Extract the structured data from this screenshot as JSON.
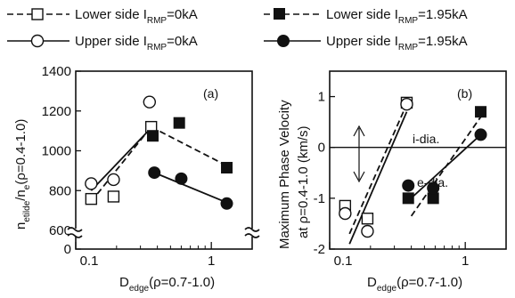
{
  "legend": {
    "items": [
      {
        "main": "Lower side I",
        "sub": "RMP",
        "tail": "=0kA",
        "marker": "open-square",
        "line": "dashed"
      },
      {
        "main": "Lower side I",
        "sub": "RMP",
        "tail": "=1.95kA",
        "marker": "filled-square",
        "line": "dashed"
      },
      {
        "main": "Upper side I",
        "sub": "RMP",
        "tail": "=0kA",
        "marker": "open-circle",
        "line": "solid"
      },
      {
        "main": "Upper side I",
        "sub": "RMP",
        "tail": "=1.95kA",
        "marker": "filled-circle",
        "line": "solid"
      }
    ]
  },
  "chart_data": [
    {
      "type": "scatter",
      "tag": "(a)",
      "xlabel": {
        "main": "D",
        "sub": "edge",
        "tail": "(ρ=0.7-1.0)"
      },
      "ylabel": {
        "main": "n",
        "sub1": "etilde",
        "mid": "/n",
        "sub2": "e",
        "tail": "(ρ=0.4-1.0)"
      },
      "xscale": "log",
      "xlim": [
        0.1,
        2.0
      ],
      "ylim": [
        0,
        1400
      ],
      "axis_break": [
        0,
        600
      ],
      "xticks": [
        0.1,
        1
      ],
      "xtick_labels": [
        "0.1",
        "1"
      ],
      "yticks": [
        0,
        600,
        800,
        1000,
        1200,
        1400
      ],
      "ytick_labels": [
        "0",
        "600",
        "800",
        "1000",
        "1200",
        "1400"
      ],
      "series": [
        {
          "name": "Lower side I_RMP=0kA",
          "marker": "open-square",
          "x": [
            0.13,
            0.19,
            0.36
          ],
          "y": [
            758,
            770,
            1120
          ],
          "fit": {
            "style": "dashed",
            "x": [
              0.13,
              0.36
            ],
            "y": [
              745,
              1120
            ]
          }
        },
        {
          "name": "Lower side I_RMP=1.95kA",
          "marker": "filled-square",
          "x": [
            0.37,
            0.58,
            1.3
          ],
          "y": [
            1075,
            1140,
            915
          ],
          "fit": {
            "style": "dashed",
            "x": [
              0.36,
              1.3
            ],
            "y": [
              1120,
              925
            ]
          }
        },
        {
          "name": "Upper side I_RMP=0kA",
          "marker": "open-circle",
          "x": [
            0.13,
            0.19,
            0.35
          ],
          "y": [
            835,
            855,
            1245
          ],
          "fit": {
            "style": "solid",
            "x": [
              0.13,
              0.36
            ],
            "y": [
              800,
              1115
            ]
          }
        },
        {
          "name": "Upper side I_RMP=1.95kA",
          "marker": "filled-circle",
          "x": [
            0.38,
            0.6,
            1.3
          ],
          "y": [
            890,
            860,
            735
          ],
          "fit": {
            "style": "solid",
            "x": [
              0.38,
              1.3
            ],
            "y": [
              890,
              740
            ]
          }
        }
      ]
    },
    {
      "type": "scatter",
      "tag": "(b)",
      "xlabel": {
        "main": "D",
        "sub": "edge",
        "tail": "(ρ=0.7-1.0)"
      },
      "ylabel_line1": "Maximum Phase Velocity",
      "ylabel_line2": "at ρ=0.4-1.0 (km/s)",
      "xscale": "log",
      "xlim": [
        0.1,
        2.0
      ],
      "ylim": [
        -2,
        1.5
      ],
      "yticks": [
        -2,
        -1,
        0,
        1
      ],
      "ytick_labels": [
        "-2",
        "-1",
        "0",
        "1"
      ],
      "xticks": [
        0.1,
        1
      ],
      "xtick_labels": [
        "0.1",
        "1"
      ],
      "hline": 0,
      "annotations": [
        "i-dia.",
        "e-dia."
      ],
      "series": [
        {
          "name": "Lower side I_RMP=0kA",
          "marker": "open-square",
          "x": [
            0.13,
            0.19,
            0.37
          ],
          "y": [
            -1.15,
            -1.4,
            0.88
          ],
          "fit": {
            "style": "dashed",
            "x": [
              0.14,
              0.37
            ],
            "y": [
              -1.7,
              0.85
            ]
          }
        },
        {
          "name": "Lower side I_RMP=1.95kA",
          "marker": "filled-square",
          "x": [
            0.38,
            0.58,
            1.3
          ],
          "y": [
            -1.0,
            -1.0,
            0.7
          ],
          "fit": {
            "style": "dashed",
            "x": [
              0.4,
              1.3
            ],
            "y": [
              -1.35,
              0.6
            ]
          }
        },
        {
          "name": "Upper side I_RMP=0kA",
          "marker": "open-circle",
          "x": [
            0.13,
            0.19,
            0.37
          ],
          "y": [
            -1.3,
            -1.65,
            0.85
          ],
          "fit": {
            "style": "solid",
            "x": [
              0.14,
              0.37
            ],
            "y": [
              -1.9,
              0.7
            ]
          }
        },
        {
          "name": "Upper side I_RMP=1.95kA",
          "marker": "filled-circle",
          "x": [
            0.38,
            0.58,
            1.3
          ],
          "y": [
            -0.75,
            -0.8,
            0.25
          ],
          "fit": {
            "style": "solid",
            "x": [
              0.38,
              1.3
            ],
            "y": [
              -1.05,
              0.25
            ]
          }
        }
      ]
    }
  ]
}
